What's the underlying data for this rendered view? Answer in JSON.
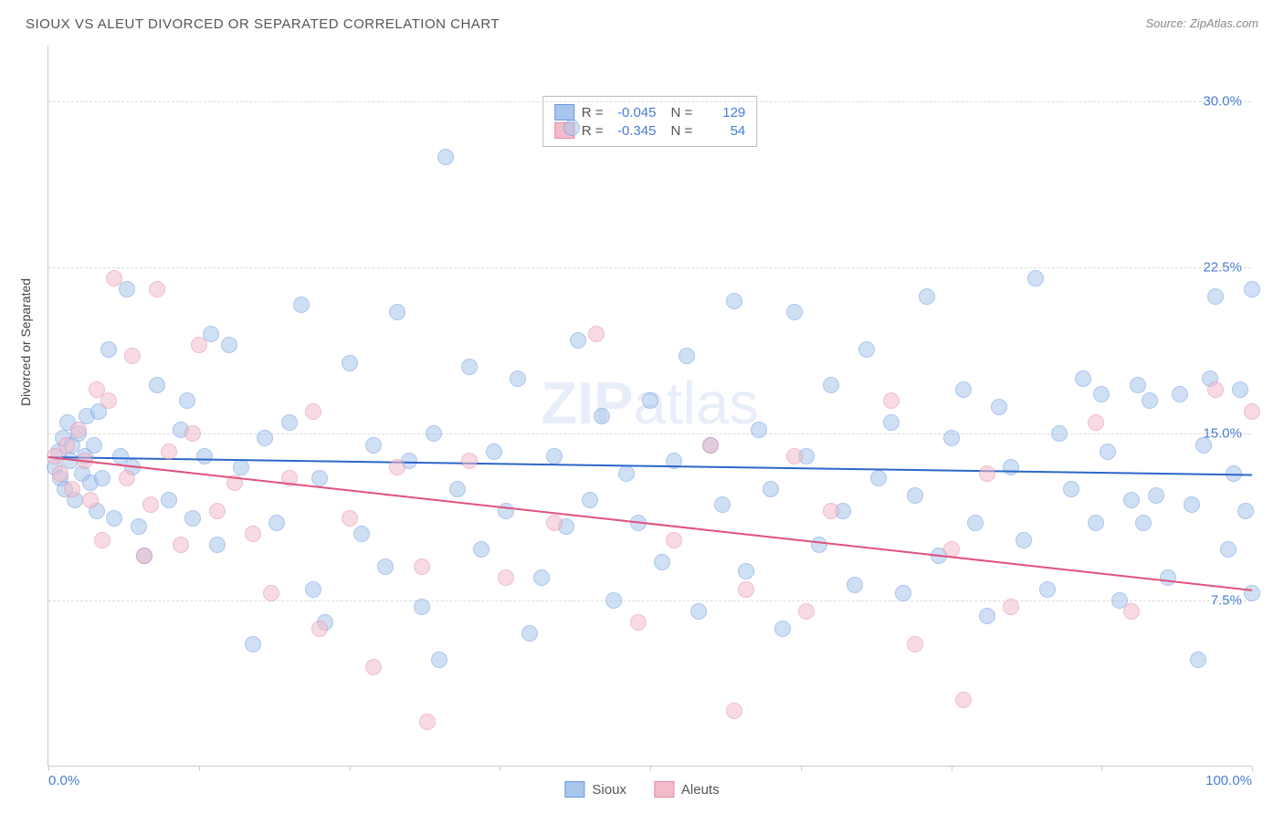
{
  "title": "SIOUX VS ALEUT DIVORCED OR SEPARATED CORRELATION CHART",
  "source": "Source: ZipAtlas.com",
  "watermark_bold": "ZIP",
  "watermark_rest": "atlas",
  "y_axis_label": "Divorced or Separated",
  "chart": {
    "type": "scatter",
    "xlim": [
      0,
      100
    ],
    "ylim": [
      0,
      32.5
    ],
    "x_ticks": [
      0,
      12.5,
      25,
      37.5,
      50,
      62.5,
      75,
      87.5,
      100
    ],
    "x_tick_labels": {
      "0": "0.0%",
      "100": "100.0%"
    },
    "y_gridlines": [
      7.5,
      15.0,
      22.5,
      30.0
    ],
    "y_tick_labels": {
      "7.5": "7.5%",
      "15.0": "15.0%",
      "22.5": "22.5%",
      "30.0": "30.0%"
    },
    "background_color": "#ffffff",
    "grid_color": "#dddddd",
    "axis_color": "#cccccc",
    "tick_label_color": "#4a7dd4",
    "series": [
      {
        "name": "Sioux",
        "color_fill": "#a8c5ec",
        "color_stroke": "#6b9be0",
        "R": "-0.045",
        "N": "129",
        "trend": {
          "x0": 0,
          "y0": 14.0,
          "x1": 100,
          "y1": 13.2,
          "color": "#2b67c9",
          "width": 2
        },
        "points": [
          [
            0.5,
            13.5
          ],
          [
            0.8,
            14.2
          ],
          [
            1.0,
            13.0
          ],
          [
            1.2,
            14.8
          ],
          [
            1.4,
            12.5
          ],
          [
            1.6,
            15.5
          ],
          [
            1.8,
            13.8
          ],
          [
            2.0,
            14.5
          ],
          [
            2.2,
            12.0
          ],
          [
            2.5,
            15.0
          ],
          [
            2.8,
            13.2
          ],
          [
            3.0,
            14.0
          ],
          [
            3.2,
            15.8
          ],
          [
            3.5,
            12.8
          ],
          [
            3.8,
            14.5
          ],
          [
            4.0,
            11.5
          ],
          [
            4.2,
            16.0
          ],
          [
            4.5,
            13.0
          ],
          [
            5.0,
            18.8
          ],
          [
            5.5,
            11.2
          ],
          [
            6.0,
            14.0
          ],
          [
            6.5,
            21.5
          ],
          [
            7.0,
            13.5
          ],
          [
            7.5,
            10.8
          ],
          [
            8.0,
            9.5
          ],
          [
            9.0,
            17.2
          ],
          [
            10.0,
            12.0
          ],
          [
            11.0,
            15.2
          ],
          [
            11.5,
            16.5
          ],
          [
            12.0,
            11.2
          ],
          [
            13.0,
            14.0
          ],
          [
            13.5,
            19.5
          ],
          [
            14.0,
            10.0
          ],
          [
            15.0,
            19.0
          ],
          [
            16.0,
            13.5
          ],
          [
            17.0,
            5.5
          ],
          [
            18.0,
            14.8
          ],
          [
            19.0,
            11.0
          ],
          [
            20.0,
            15.5
          ],
          [
            21.0,
            20.8
          ],
          [
            22.0,
            8.0
          ],
          [
            22.5,
            13.0
          ],
          [
            23.0,
            6.5
          ],
          [
            25.0,
            18.2
          ],
          [
            26.0,
            10.5
          ],
          [
            27.0,
            14.5
          ],
          [
            28.0,
            9.0
          ],
          [
            29.0,
            20.5
          ],
          [
            30.0,
            13.8
          ],
          [
            31.0,
            7.2
          ],
          [
            32.0,
            15.0
          ],
          [
            32.5,
            4.8
          ],
          [
            33.0,
            27.5
          ],
          [
            34.0,
            12.5
          ],
          [
            35.0,
            18.0
          ],
          [
            36.0,
            9.8
          ],
          [
            37.0,
            14.2
          ],
          [
            38.0,
            11.5
          ],
          [
            39.0,
            17.5
          ],
          [
            40.0,
            6.0
          ],
          [
            41.0,
            8.5
          ],
          [
            42.0,
            14.0
          ],
          [
            43.0,
            10.8
          ],
          [
            43.5,
            28.8
          ],
          [
            44.0,
            19.2
          ],
          [
            45.0,
            12.0
          ],
          [
            46.0,
            15.8
          ],
          [
            47.0,
            7.5
          ],
          [
            48.0,
            13.2
          ],
          [
            49.0,
            11.0
          ],
          [
            50.0,
            16.5
          ],
          [
            51.0,
            9.2
          ],
          [
            52.0,
            13.8
          ],
          [
            53.0,
            18.5
          ],
          [
            54.0,
            7.0
          ],
          [
            55.0,
            14.5
          ],
          [
            56.0,
            11.8
          ],
          [
            57.0,
            21.0
          ],
          [
            58.0,
            8.8
          ],
          [
            59.0,
            15.2
          ],
          [
            60.0,
            12.5
          ],
          [
            61.0,
            6.2
          ],
          [
            62.0,
            20.5
          ],
          [
            63.0,
            14.0
          ],
          [
            64.0,
            10.0
          ],
          [
            65.0,
            17.2
          ],
          [
            66.0,
            11.5
          ],
          [
            67.0,
            8.2
          ],
          [
            68.0,
            18.8
          ],
          [
            69.0,
            13.0
          ],
          [
            70.0,
            15.5
          ],
          [
            71.0,
            7.8
          ],
          [
            72.0,
            12.2
          ],
          [
            73.0,
            21.2
          ],
          [
            74.0,
            9.5
          ],
          [
            75.0,
            14.8
          ],
          [
            76.0,
            17.0
          ],
          [
            77.0,
            11.0
          ],
          [
            78.0,
            6.8
          ],
          [
            79.0,
            16.2
          ],
          [
            80.0,
            13.5
          ],
          [
            81.0,
            10.2
          ],
          [
            82.0,
            22.0
          ],
          [
            83.0,
            8.0
          ],
          [
            84.0,
            15.0
          ],
          [
            85.0,
            12.5
          ],
          [
            86.0,
            17.5
          ],
          [
            87.0,
            11.0
          ],
          [
            87.5,
            16.8
          ],
          [
            88.0,
            14.2
          ],
          [
            89.0,
            7.5
          ],
          [
            90.0,
            12.0
          ],
          [
            90.5,
            17.2
          ],
          [
            91.0,
            11.0
          ],
          [
            91.5,
            16.5
          ],
          [
            92.0,
            12.2
          ],
          [
            93.0,
            8.5
          ],
          [
            94.0,
            16.8
          ],
          [
            95.0,
            11.8
          ],
          [
            95.5,
            4.8
          ],
          [
            96.0,
            14.5
          ],
          [
            96.5,
            17.5
          ],
          [
            97.0,
            21.2
          ],
          [
            98.0,
            9.8
          ],
          [
            98.5,
            13.2
          ],
          [
            99.0,
            17.0
          ],
          [
            99.5,
            11.5
          ],
          [
            100.0,
            21.5
          ],
          [
            100.0,
            7.8
          ]
        ]
      },
      {
        "name": "Aleuts",
        "color_fill": "#f3bccb",
        "color_stroke": "#e38ba5",
        "R": "-0.345",
        "N": "54",
        "trend": {
          "x0": 0,
          "y0": 14.0,
          "x1": 100,
          "y1": 8.0,
          "color": "#e0527c",
          "width": 2
        },
        "points": [
          [
            0.5,
            14.0
          ],
          [
            1.0,
            13.2
          ],
          [
            1.5,
            14.5
          ],
          [
            2.0,
            12.5
          ],
          [
            2.5,
            15.2
          ],
          [
            3.0,
            13.8
          ],
          [
            3.5,
            12.0
          ],
          [
            4.0,
            17.0
          ],
          [
            4.5,
            10.2
          ],
          [
            5.0,
            16.5
          ],
          [
            5.5,
            22.0
          ],
          [
            6.5,
            13.0
          ],
          [
            7.0,
            18.5
          ],
          [
            8.0,
            9.5
          ],
          [
            8.5,
            11.8
          ],
          [
            9.0,
            21.5
          ],
          [
            10.0,
            14.2
          ],
          [
            11.0,
            10.0
          ],
          [
            12.0,
            15.0
          ],
          [
            12.5,
            19.0
          ],
          [
            14.0,
            11.5
          ],
          [
            15.5,
            12.8
          ],
          [
            17.0,
            10.5
          ],
          [
            18.5,
            7.8
          ],
          [
            20.0,
            13.0
          ],
          [
            22.0,
            16.0
          ],
          [
            22.5,
            6.2
          ],
          [
            25.0,
            11.2
          ],
          [
            27.0,
            4.5
          ],
          [
            29.0,
            13.5
          ],
          [
            31.0,
            9.0
          ],
          [
            31.5,
            2.0
          ],
          [
            35.0,
            13.8
          ],
          [
            38.0,
            8.5
          ],
          [
            42.0,
            11.0
          ],
          [
            45.5,
            19.5
          ],
          [
            49.0,
            6.5
          ],
          [
            52.0,
            10.2
          ],
          [
            55.0,
            14.5
          ],
          [
            57.0,
            2.5
          ],
          [
            58.0,
            8.0
          ],
          [
            62.0,
            14.0
          ],
          [
            63.0,
            7.0
          ],
          [
            65.0,
            11.5
          ],
          [
            70.0,
            16.5
          ],
          [
            72.0,
            5.5
          ],
          [
            75.0,
            9.8
          ],
          [
            76.0,
            3.0
          ],
          [
            78.0,
            13.2
          ],
          [
            80.0,
            7.2
          ],
          [
            87.0,
            15.5
          ],
          [
            90.0,
            7.0
          ],
          [
            97.0,
            17.0
          ],
          [
            100.0,
            16.0
          ]
        ]
      }
    ]
  },
  "legend_top_labels": {
    "R": "R =",
    "N": "N ="
  },
  "legend_bottom": [
    "Sioux",
    "Aleuts"
  ]
}
